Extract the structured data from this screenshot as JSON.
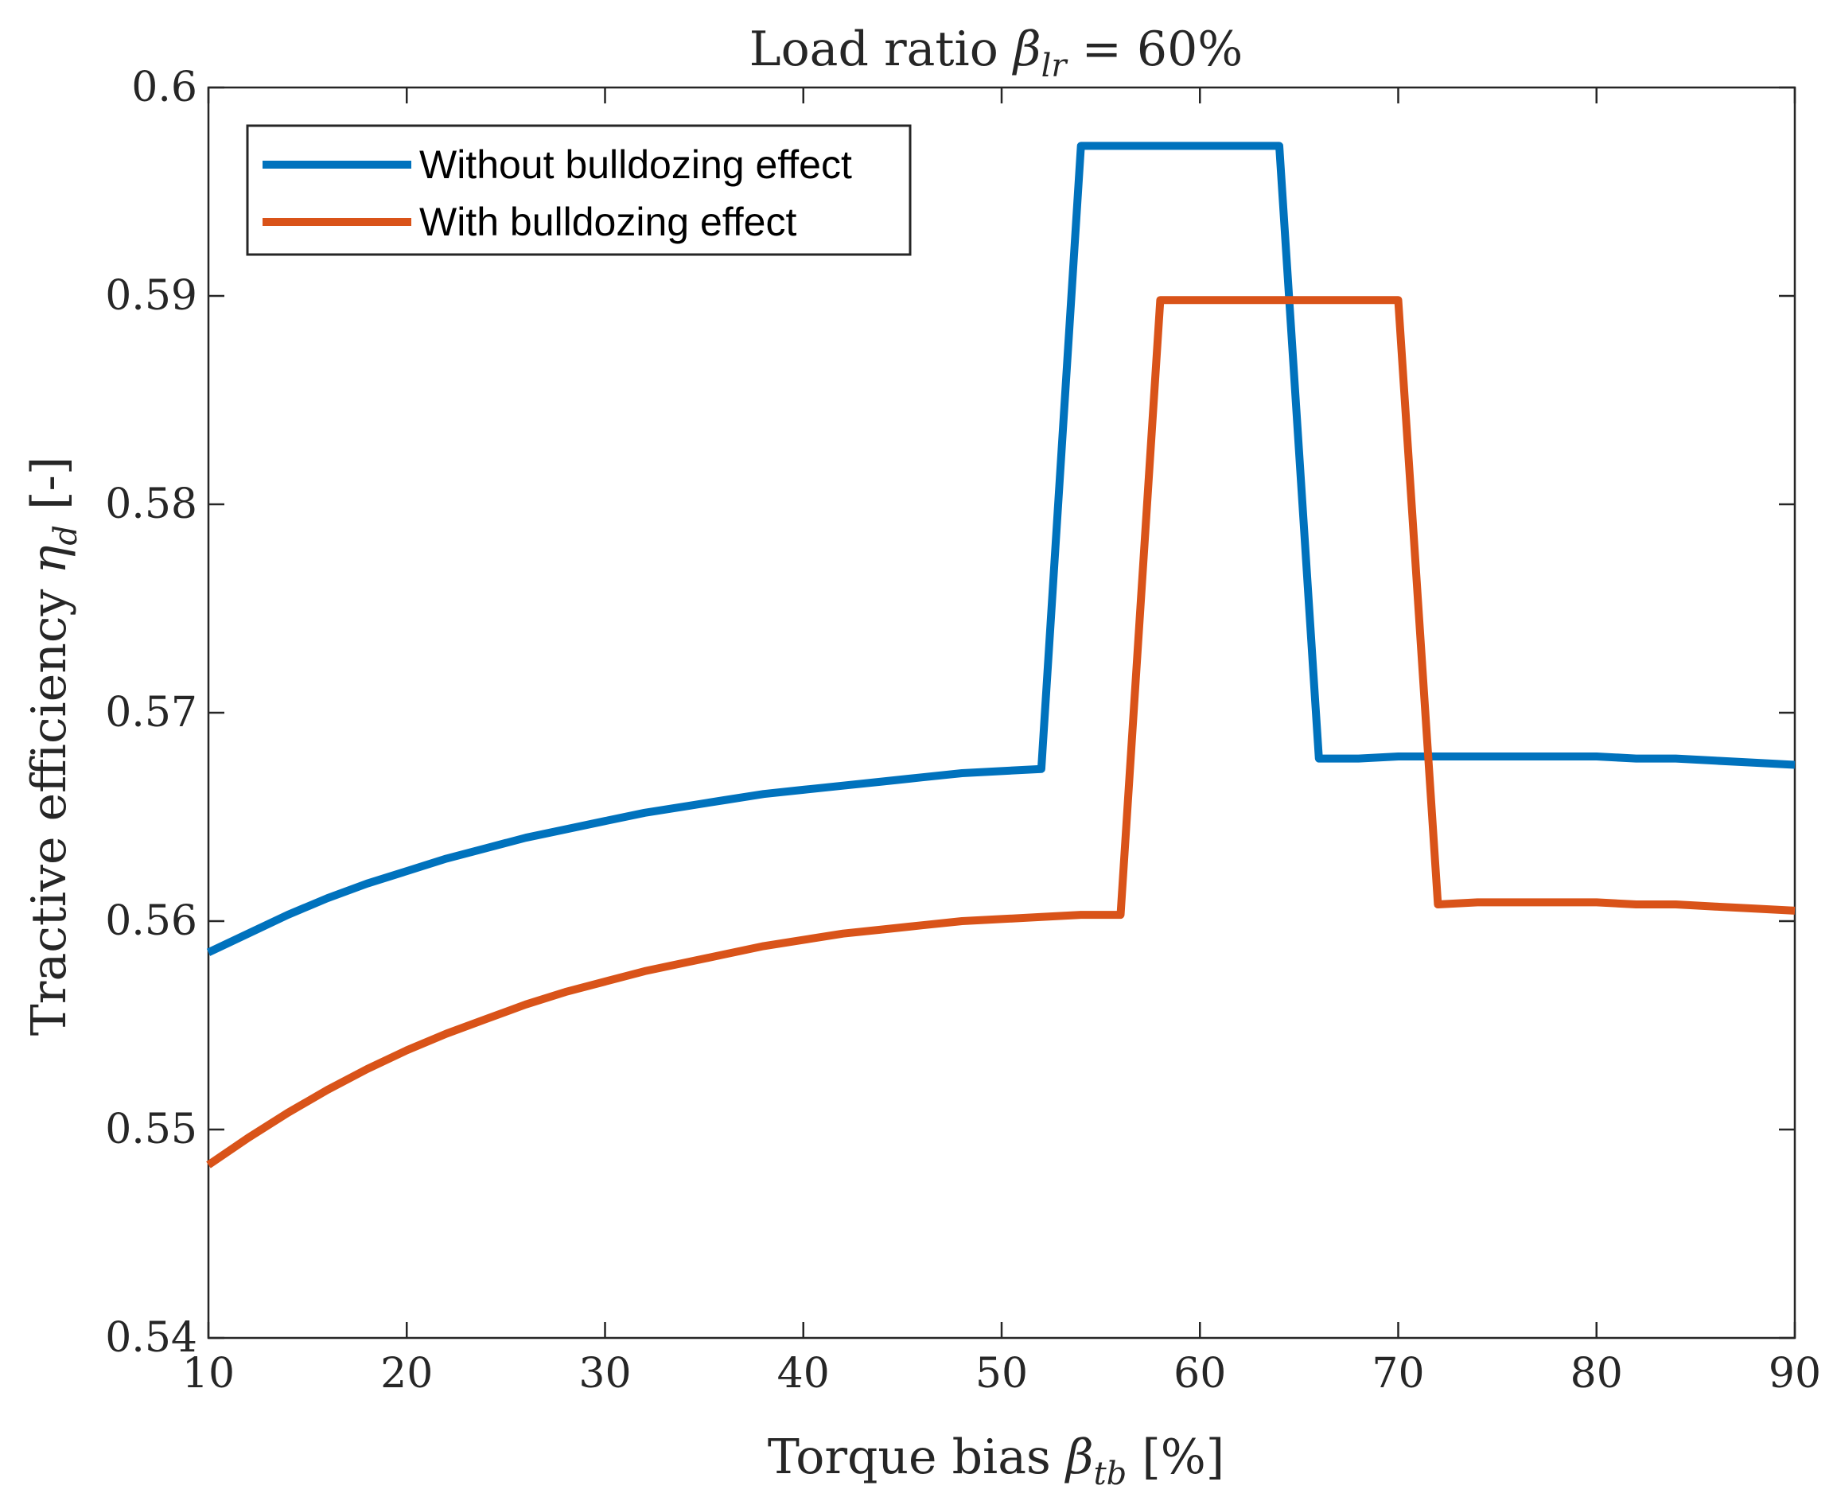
{
  "chart_data": {
    "type": "line",
    "title": "Load ratio β_lr = 60%",
    "title_parts": {
      "prefix": "Load ratio ",
      "symbol": "β",
      "subscript": "lr",
      "suffix": " = 60%"
    },
    "xlabel": "Torque bias β_tb [%]",
    "xlabel_parts": {
      "prefix": "Torque bias ",
      "symbol": "β",
      "subscript": "tb",
      "suffix": " [%]"
    },
    "ylabel": "Tractive efficiency η_d [-]",
    "ylabel_parts": {
      "prefix": "Tractive efficiency ",
      "symbol": "η",
      "subscript": "d",
      "suffix": " [-]"
    },
    "xlim": [
      10,
      90
    ],
    "ylim": [
      0.54,
      0.6
    ],
    "xticks": [
      10,
      20,
      30,
      40,
      50,
      60,
      70,
      80,
      90
    ],
    "xtick_labels": [
      "10",
      "20",
      "30",
      "40",
      "50",
      "60",
      "70",
      "80",
      "90"
    ],
    "yticks": [
      0.54,
      0.55,
      0.56,
      0.57,
      0.58,
      0.59,
      0.6
    ],
    "ytick_labels": [
      "0.54",
      "0.55",
      "0.56",
      "0.57",
      "0.58",
      "0.59",
      "0.6"
    ],
    "grid": false,
    "legend_position": "top-left",
    "series": [
      {
        "name": "Without bulldozing effect",
        "color": "#0072BD",
        "x": [
          10,
          12,
          14,
          16,
          18,
          20,
          22,
          24,
          26,
          28,
          30,
          32,
          34,
          36,
          38,
          40,
          42,
          44,
          46,
          48,
          50,
          52,
          54,
          56,
          58,
          60,
          62,
          64,
          66,
          68,
          70,
          72,
          74,
          76,
          78,
          80,
          82,
          84,
          86,
          88,
          90
        ],
        "y": [
          0.5585,
          0.5594,
          0.5603,
          0.5611,
          0.5618,
          0.5624,
          0.563,
          0.5635,
          0.564,
          0.5644,
          0.5648,
          0.5652,
          0.5655,
          0.5658,
          0.5661,
          0.5663,
          0.5665,
          0.5667,
          0.5669,
          0.5671,
          0.5672,
          0.5673,
          0.5972,
          0.5972,
          0.5972,
          0.5972,
          0.5972,
          0.5972,
          0.5678,
          0.5678,
          0.5679,
          0.5679,
          0.5679,
          0.5679,
          0.5679,
          0.5679,
          0.5678,
          0.5678,
          0.5677,
          0.5676,
          0.5675
        ]
      },
      {
        "name": "With bulldozing effect",
        "color": "#D95319",
        "x": [
          10,
          12,
          14,
          16,
          18,
          20,
          22,
          24,
          26,
          28,
          30,
          32,
          34,
          36,
          38,
          40,
          42,
          44,
          46,
          48,
          50,
          52,
          54,
          56,
          58,
          60,
          62,
          64,
          66,
          68,
          70,
          72,
          74,
          76,
          78,
          80,
          82,
          84,
          86,
          88,
          90
        ],
        "y": [
          0.5483,
          0.5496,
          0.5508,
          0.5519,
          0.5529,
          0.5538,
          0.5546,
          0.5553,
          0.556,
          0.5566,
          0.5571,
          0.5576,
          0.558,
          0.5584,
          0.5588,
          0.5591,
          0.5594,
          0.5596,
          0.5598,
          0.56,
          0.5601,
          0.5602,
          0.5603,
          0.5603,
          0.5898,
          0.5898,
          0.5898,
          0.5898,
          0.5898,
          0.5898,
          0.5898,
          0.5608,
          0.5609,
          0.5609,
          0.5609,
          0.5609,
          0.5608,
          0.5608,
          0.5607,
          0.5606,
          0.5605
        ]
      }
    ]
  }
}
